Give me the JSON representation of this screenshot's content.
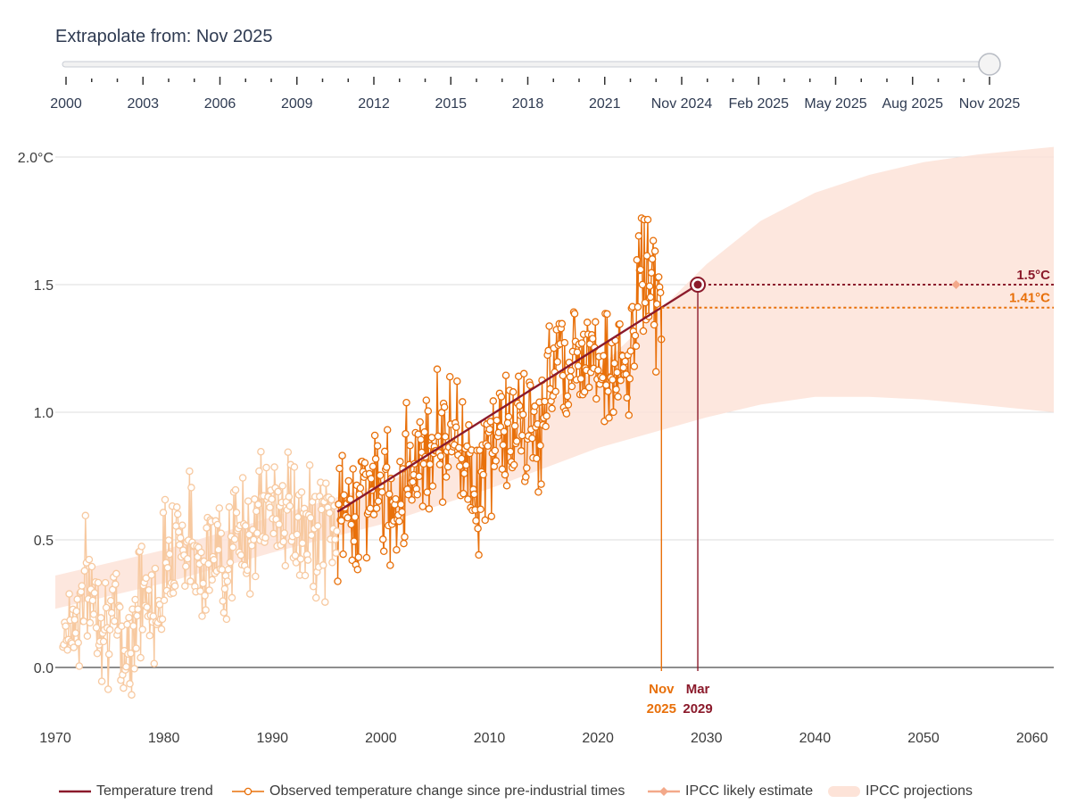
{
  "slider": {
    "title_prefix": "Extrapolate from: ",
    "current_value": "Nov 2025",
    "ticks": [
      "2000",
      "2003",
      "2006",
      "2009",
      "2012",
      "2015",
      "2018",
      "2021",
      "Nov 2024",
      "Feb 2025",
      "May 2025",
      "Aug 2025",
      "Nov 2025"
    ]
  },
  "colors": {
    "trend": "#8b1a2b",
    "observed": "#e8700a",
    "observed_faded": "#f7c9a0",
    "ipcc_estimate": "#f3a98a",
    "ipcc_band": "#fde3d8",
    "grid": "#dcdcdc",
    "axis": "#4a4a4a"
  },
  "chart_data": {
    "type": "line",
    "title": "",
    "xlabel": "",
    "ylabel": "",
    "xlim": [
      1970,
      2062
    ],
    "ylim": [
      -0.22,
      2.0
    ],
    "x_ticks": [
      1970,
      1980,
      1990,
      2000,
      2010,
      2020,
      2030,
      2040,
      2050,
      2060
    ],
    "y_ticks": [
      {
        "value": 0.0,
        "label": "0.0"
      },
      {
        "value": 0.5,
        "label": "0.5"
      },
      {
        "value": 1.0,
        "label": "1.0"
      },
      {
        "value": 1.5,
        "label": "1.5"
      },
      {
        "value": 2.0,
        "label": "2.0°C"
      }
    ],
    "trend": {
      "name": "Temperature trend",
      "x": [
        1996.0,
        2029.2
      ],
      "y": [
        0.61,
        1.5
      ]
    },
    "observed_highlight_from": 1996.0,
    "observed": {
      "name": "Observed temperature change since pre-industrial times",
      "anchors_x": [
        1970.7,
        1972,
        1973,
        1975.5,
        1976.5,
        1977.8,
        1979,
        1981,
        1983,
        1985,
        1987,
        1989,
        1991,
        1993,
        1995,
        1997,
        1999,
        2001,
        2003,
        2005,
        2007,
        2009,
        2011,
        2013,
        2015,
        2016.2,
        2017.5,
        2019,
        2021,
        2023,
        2023.7,
        2024.5,
        2025.9
      ],
      "anchors_y": [
        0.16,
        0.2,
        0.32,
        0.15,
        0.05,
        0.3,
        0.2,
        0.55,
        0.45,
        0.42,
        0.5,
        0.6,
        0.65,
        0.5,
        0.55,
        0.6,
        0.72,
        0.64,
        0.82,
        0.9,
        0.92,
        0.7,
        0.95,
        0.9,
        0.95,
        1.3,
        1.15,
        1.3,
        1.15,
        1.15,
        1.55,
        1.55,
        1.42
      ],
      "noise": 0.12,
      "step": 0.0833
    },
    "ipcc_projection_band": {
      "name": "IPCC projections",
      "x": [
        1970,
        1980,
        1990,
        2000,
        2010,
        2020,
        2025,
        2030,
        2035,
        2040,
        2045,
        2050,
        2055,
        2062
      ],
      "upper": [
        0.36,
        0.46,
        0.59,
        0.72,
        0.88,
        1.17,
        1.37,
        1.58,
        1.75,
        1.86,
        1.93,
        1.98,
        2.01,
        2.04
      ],
      "lower": [
        0.23,
        0.33,
        0.45,
        0.56,
        0.7,
        0.86,
        0.92,
        0.98,
        1.03,
        1.06,
        1.06,
        1.05,
        1.03,
        1.0
      ]
    },
    "ipcc_likely_estimate": {
      "name": "IPCC likely estimate",
      "x": 2053.0,
      "y": 1.5
    },
    "threshold_lines": [
      {
        "value": 1.5,
        "label": "1.5°C",
        "color": "#8b1a2b"
      },
      {
        "value": 1.41,
        "label": "1.41°C",
        "color": "#e8700a"
      }
    ],
    "vertical_markers": [
      {
        "x": 2025.85,
        "month": "Nov",
        "year": "2025",
        "color": "#e8700a",
        "top_value": 1.41
      },
      {
        "x": 2029.2,
        "month": "Mar",
        "year": "2029",
        "color": "#8b1a2b",
        "top_value": 1.5
      }
    ],
    "crossing_point": {
      "x": 2029.2,
      "y": 1.5
    }
  },
  "legend": [
    {
      "key": "trend",
      "label": "Temperature trend"
    },
    {
      "key": "observed",
      "label": "Observed temperature change since pre-industrial times"
    },
    {
      "key": "ipcc_estimate",
      "label": "IPCC likely estimate"
    },
    {
      "key": "ipcc_band",
      "label": "IPCC projections"
    }
  ]
}
